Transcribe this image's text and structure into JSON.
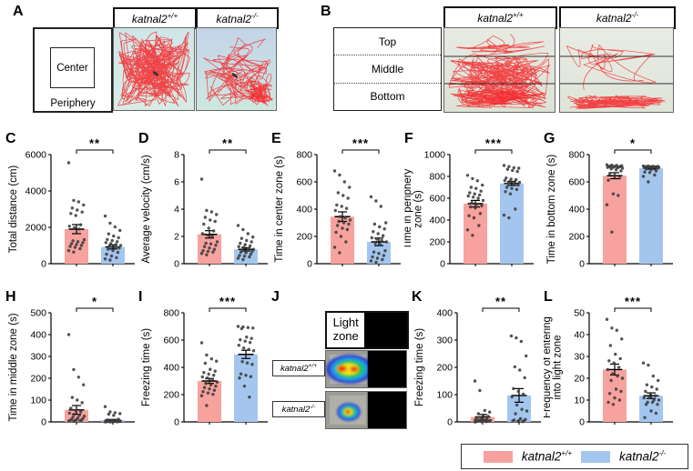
{
  "colors": {
    "wt": "#F7A29E",
    "ko": "#A4C6EE",
    "track": "#F5272B",
    "dot": "#3C3C3C"
  },
  "genotypes": {
    "wt": {
      "base": "katnal2",
      "sup": "+/+"
    },
    "ko": {
      "base": "katnal2",
      "sup": "-/-"
    }
  },
  "panelA": {
    "letter": "A",
    "schematic": {
      "center": "Center",
      "periphery": "Periphery"
    }
  },
  "panelB": {
    "letter": "B",
    "zones": [
      "Top",
      "Middle",
      "Bottom"
    ]
  },
  "panelJ": {
    "letter": "J",
    "light_zone_lines": [
      "Light",
      "zone"
    ]
  },
  "legend": {
    "note": "group color key"
  },
  "chart_data": {
    "C": {
      "letter": "C",
      "type": "bar",
      "ylabel": "Total distance (cm)",
      "ymax": 6000,
      "yticks": [
        0,
        2000,
        4000,
        6000
      ],
      "sig": "**",
      "groups": [
        {
          "genotype": "wt",
          "mean": 1900,
          "sem": 250,
          "points": [
            5550,
            3480,
            3400,
            3230,
            3060,
            2950,
            2840,
            2760,
            2650,
            2140,
            2060,
            1980,
            1900,
            1320,
            1260,
            1210,
            1160,
            1100,
            1060,
            1000,
            950,
            900,
            820,
            720,
            640
          ]
        },
        {
          "genotype": "ko",
          "mean": 920,
          "sem": 110,
          "points": [
            2620,
            2230,
            2020,
            1830,
            1640,
            1520,
            1430,
            1330,
            1270,
            1210,
            1160,
            1100,
            1050,
            1000,
            950,
            900,
            860,
            800,
            720,
            620,
            520,
            420,
            330,
            260,
            200
          ]
        }
      ]
    },
    "D": {
      "letter": "D",
      "type": "bar",
      "ylabel": "Average velocity (cm/s)",
      "ymax": 8,
      "yticks": [
        0,
        2,
        4,
        6,
        8
      ],
      "sig": "**",
      "groups": [
        {
          "genotype": "wt",
          "mean": 2.15,
          "sem": 0.27,
          "points": [
            6.2,
            3.9,
            3.8,
            3.6,
            3.4,
            3.2,
            3.1,
            2.9,
            2.6,
            2.4,
            2.2,
            2.1,
            2.0,
            1.6,
            1.5,
            1.45,
            1.35,
            1.25,
            1.15,
            1.05,
            0.95,
            0.9,
            0.85,
            0.75,
            0.65
          ]
        },
        {
          "genotype": "ko",
          "mean": 1.05,
          "sem": 0.12,
          "points": [
            2.8,
            2.5,
            2.2,
            1.95,
            1.85,
            1.7,
            1.6,
            1.5,
            1.4,
            1.3,
            1.25,
            1.2,
            1.1,
            1.05,
            1.0,
            0.95,
            0.9,
            0.85,
            0.8,
            0.7,
            0.6,
            0.55,
            0.5,
            0.4,
            0.3
          ]
        }
      ]
    },
    "E": {
      "letter": "E",
      "type": "bar",
      "ylabel": "Time in center zone (s)",
      "ymax": 800,
      "yticks": [
        0,
        200,
        400,
        600,
        800
      ],
      "sig": "***",
      "groups": [
        {
          "genotype": "wt",
          "mean": 345,
          "sem": 35,
          "points": [
            680,
            650,
            600,
            560,
            520,
            500,
            480,
            430,
            420,
            405,
            390,
            345,
            335,
            320,
            310,
            300,
            290,
            280,
            260,
            250,
            230,
            200,
            160,
            120,
            80
          ]
        },
        {
          "genotype": "ko",
          "mean": 160,
          "sem": 28,
          "points": [
            490,
            460,
            420,
            300,
            290,
            270,
            255,
            235,
            220,
            205,
            190,
            180,
            170,
            160,
            150,
            140,
            95,
            85,
            75,
            60,
            50,
            40,
            30,
            20,
            10
          ]
        }
      ]
    },
    "F": {
      "letter": "F",
      "type": "bar",
      "ylabel": [
        "Time in periphery",
        "zone (s)"
      ],
      "ymax": 1000,
      "yticks": [
        0,
        200,
        400,
        600,
        800,
        1000
      ],
      "sig": "***",
      "groups": [
        {
          "genotype": "wt",
          "mean": 550,
          "sem": 30,
          "points": [
            810,
            780,
            760,
            720,
            700,
            690,
            665,
            650,
            640,
            630,
            620,
            610,
            600,
            580,
            560,
            545,
            530,
            520,
            510,
            460,
            440,
            420,
            350,
            310,
            260
          ]
        },
        {
          "genotype": "ko",
          "mean": 735,
          "sem": 18,
          "points": [
            900,
            890,
            880,
            875,
            865,
            855,
            845,
            785,
            775,
            770,
            762,
            755,
            750,
            745,
            740,
            730,
            720,
            700,
            690,
            680,
            660,
            640,
            500,
            445,
            420
          ]
        }
      ]
    },
    "G": {
      "letter": "G",
      "type": "bar",
      "ylabel": "Time in bottom zone (s)",
      "ymax": 800,
      "yticks": [
        0,
        200,
        400,
        600,
        800
      ],
      "sig": "*",
      "groups": [
        {
          "genotype": "wt",
          "mean": 645,
          "sem": 22,
          "points": [
            725,
            722,
            720,
            718,
            716,
            715,
            713,
            712,
            710,
            708,
            706,
            705,
            703,
            700,
            695,
            688,
            680,
            662,
            645,
            628,
            612,
            512,
            500,
            432,
            232
          ]
        },
        {
          "genotype": "ko",
          "mean": 700,
          "sem": 7,
          "points": [
            716,
            715,
            714,
            713,
            712,
            712,
            711,
            710,
            710,
            709,
            708,
            708,
            707,
            706,
            705,
            703,
            700,
            695,
            688,
            680,
            672,
            668,
            650,
            640,
            600
          ]
        }
      ]
    },
    "H": {
      "letter": "H",
      "type": "bar",
      "ylabel": "Time in middle zone (s)",
      "ymax": 500,
      "yticks": [
        0,
        100,
        200,
        300,
        400,
        500
      ],
      "sig": "*",
      "groups": [
        {
          "genotype": "wt",
          "mean": 55,
          "sem": 20,
          "points": [
            400,
            240,
            205,
            170,
            112,
            100,
            88,
            62,
            52,
            46,
            40,
            35,
            30,
            26,
            22,
            18,
            15,
            12,
            10,
            8,
            7,
            6,
            5,
            4,
            3
          ]
        },
        {
          "genotype": "ko",
          "mean": 8,
          "sem": 3,
          "points": [
            70,
            46,
            42,
            38,
            35,
            30,
            12,
            9,
            8,
            7,
            6,
            5,
            4,
            3,
            3,
            2,
            2,
            2,
            1,
            1,
            1,
            1,
            1,
            0,
            0
          ]
        }
      ]
    },
    "I": {
      "letter": "I",
      "type": "bar",
      "ylabel": "Freezing time (s)",
      "ymax": 800,
      "yticks": [
        0,
        200,
        400,
        600,
        800
      ],
      "sig": "***",
      "groups": [
        {
          "genotype": "wt",
          "mean": 300,
          "sem": 18,
          "points": [
            580,
            490,
            462,
            445,
            430,
            385,
            372,
            362,
            350,
            342,
            330,
            322,
            312,
            292,
            282,
            272,
            262,
            252,
            242,
            232,
            222,
            212,
            202,
            192,
            120
          ]
        },
        {
          "genotype": "ko",
          "mean": 495,
          "sem": 30,
          "points": [
            700,
            696,
            692,
            688,
            684,
            622,
            612,
            602,
            592,
            582,
            562,
            542,
            532,
            522,
            442,
            432,
            422,
            352,
            342,
            332,
            322,
            262,
            182
          ]
        }
      ]
    },
    "K": {
      "letter": "K",
      "type": "bar",
      "ylabel": "Freezing time (s)",
      "ymax": 400,
      "yticks": [
        0,
        100,
        200,
        300,
        400
      ],
      "sig": "**",
      "groups": [
        {
          "genotype": "wt",
          "mean": 18,
          "sem": 9,
          "points": [
            150,
            115,
            42,
            36,
            30,
            25,
            20,
            16,
            12,
            10,
            8,
            7,
            6,
            5,
            5,
            4,
            3,
            3,
            2,
            2,
            1,
            1,
            1,
            0
          ]
        },
        {
          "genotype": "ko",
          "mean": 97,
          "sem": 25,
          "points": [
            315,
            308,
            295,
            242,
            202,
            190,
            162,
            122,
            112,
            102,
            92,
            62,
            46,
            40,
            30,
            12,
            9,
            7,
            5,
            4,
            3,
            2,
            1
          ]
        }
      ]
    },
    "L": {
      "letter": "L",
      "type": "bar",
      "ylabel": [
        "Frequency of entering",
        "into light zone"
      ],
      "ymax": 50,
      "yticks": [
        0,
        10,
        20,
        30,
        40,
        50
      ],
      "sig": "***",
      "groups": [
        {
          "genotype": "wt",
          "mean": 24,
          "sem": 2.5,
          "points": [
            47,
            43,
            42,
            38,
            35,
            31,
            29,
            28,
            27,
            25,
            24,
            22,
            21,
            20,
            19,
            15,
            14,
            13,
            11,
            10,
            9,
            8
          ]
        },
        {
          "genotype": "ko",
          "mean": 12,
          "sem": 1.3,
          "points": [
            27,
            26,
            21,
            19,
            17,
            16,
            15,
            14,
            13,
            12,
            11,
            11,
            10,
            10,
            9,
            9,
            8,
            8,
            5,
            4,
            2
          ]
        }
      ]
    }
  }
}
